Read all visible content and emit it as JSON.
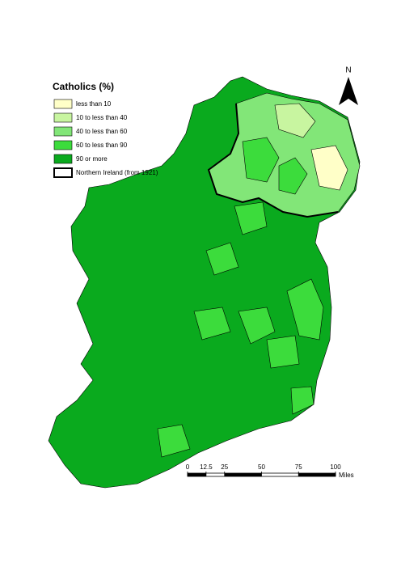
{
  "legend": {
    "title": "Catholics (%)",
    "items": [
      {
        "label": "less than 10",
        "color": "#ffffc8"
      },
      {
        "label": "10 to less than 40",
        "color": "#c8f5a0"
      },
      {
        "label": "40 to less than 60",
        "color": "#82e678"
      },
      {
        "label": "60 to less than 90",
        "color": "#3cdc3c"
      },
      {
        "label": "90 or more",
        "color": "#0aaa1e"
      }
    ],
    "border_label": "Northern Ireland (from 1921)"
  },
  "north": "N",
  "scale": {
    "ticks": [
      0,
      12.5,
      25,
      50,
      75,
      100
    ],
    "unit": "Miles"
  }
}
